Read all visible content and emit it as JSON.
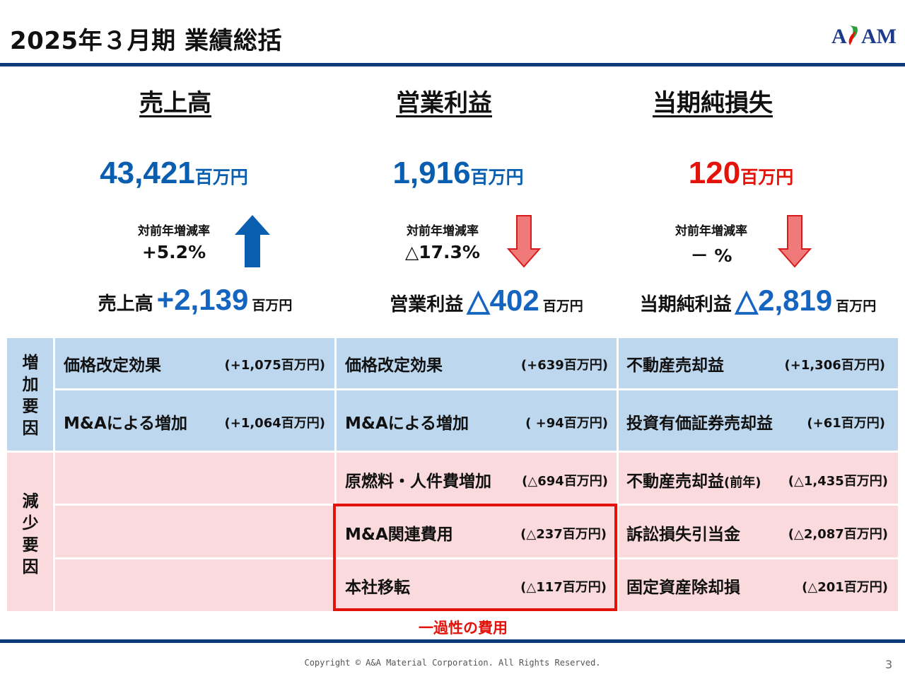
{
  "title": "2025年３月期 業績総括",
  "logo_text": "ASAM",
  "colors": {
    "navy": "#0b3a78",
    "blue": "#0a5eb0",
    "red": "#e3120b",
    "increase_bg": "#bdd7ee",
    "decrease_bg": "#fadadd"
  },
  "metrics": [
    {
      "heading": "売上高",
      "value": "43,421",
      "unit": "百万円",
      "rate_label": "対前年増減率",
      "rate_value": "+5.2%",
      "arrow": "up",
      "delta_label": "売上高",
      "delta_value": "+2,139",
      "delta_unit": "百万円"
    },
    {
      "heading": "営業利益",
      "value": "1,916",
      "unit": "百万円",
      "rate_label": "対前年増減率",
      "rate_value": "△17.3%",
      "arrow": "down",
      "delta_label": "営業利益",
      "delta_value": "△402",
      "delta_unit": "百万円"
    },
    {
      "heading": "当期純損失",
      "value": "120",
      "unit": "百万円",
      "rate_label": "対前年増減率",
      "rate_value": "－ %",
      "arrow": "down",
      "delta_label": "当期純利益",
      "delta_value": "△2,819",
      "delta_unit": "百万円"
    }
  ],
  "table": {
    "increase_label": "増加要因",
    "decrease_label": "減少要因",
    "increase_rows": [
      [
        {
          "text": "価格改定効果",
          "value": "(+1,075百万円)"
        },
        {
          "text": "価格改定効果",
          "value": "(+639百万円)"
        },
        {
          "text": "不動産売却益",
          "value": "(+1,306百万円)"
        }
      ],
      [
        {
          "text": "M&Aによる増加",
          "value": "(+1,064百万円)"
        },
        {
          "text": "M&Aによる増加",
          "value": "( +94百万円)"
        },
        {
          "text": "投資有価証券売却益",
          "value": "(+61百万円)"
        }
      ]
    ],
    "decrease_rows": [
      [
        {
          "text": "",
          "value": ""
        },
        {
          "text": "原燃料・人件費増加",
          "value": "(△694百万円)"
        },
        {
          "text": "不動産売却益",
          "text_small": "(前年)",
          "value": "(△1,435百万円)"
        }
      ],
      [
        {
          "text": "",
          "value": ""
        },
        {
          "text": "M&A関連費用",
          "value": "(△237百万円)"
        },
        {
          "text": "訴訟損失引当金",
          "value": "(△2,087百万円)"
        }
      ],
      [
        {
          "text": "",
          "value": ""
        },
        {
          "text": "本社移転",
          "value": "(△117百万円)"
        },
        {
          "text": "固定資産除却損",
          "value": "(△201百万円)"
        }
      ]
    ],
    "one_time_note": "一過性の費用"
  },
  "copyright": "Copyright © A&A Material Corporation. All Rights Reserved.",
  "page_number": "3"
}
